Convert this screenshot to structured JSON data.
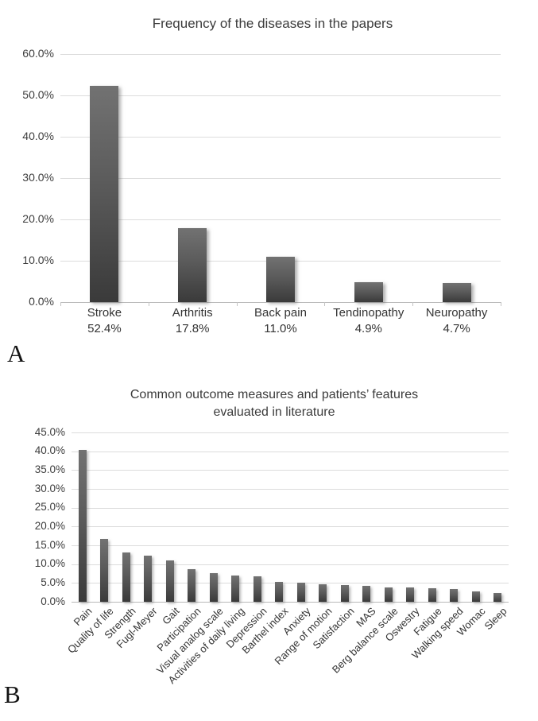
{
  "colors": {
    "background": "#ffffff",
    "bar_gradient_top": "#727272",
    "bar_gradient_bottom": "#3a3a3a",
    "gridline": "#dcdcdc",
    "axis_line": "#b9b9b9",
    "text": "#3d3d3d"
  },
  "chart_data": [
    {
      "type": "bar",
      "panel_label": "A",
      "title": "Frequency of the diseases in the papers",
      "categories": [
        "Stroke",
        "Arthritis",
        "Back pain",
        "Tendinopathy",
        "Neuropathy"
      ],
      "values": [
        52.4,
        17.8,
        11.0,
        4.9,
        4.7
      ],
      "bar_labels": [
        "52.4%",
        "17.8%",
        "11.0%",
        "4.9%",
        "4.7%"
      ],
      "ylim": [
        0,
        60
      ],
      "ytick_step": 10,
      "yticks": [
        "60.0%",
        "50.0%",
        "40.0%",
        "30.0%",
        "20.0%",
        "10.0%",
        "0.0%"
      ],
      "grid": true,
      "legend": false,
      "xlabel": "",
      "ylabel": ""
    },
    {
      "type": "bar",
      "panel_label": "B",
      "title": "Common outcome measures and patients’ features evaluated in literature",
      "title_lines": [
        "Common outcome measures and patients’ features",
        "evaluated in literature"
      ],
      "categories": [
        "Pain",
        "Quality of life",
        "Strength",
        "Fugl-Meyer",
        "Gait",
        "Participation",
        "Visual analog scale",
        "Activities of daily living",
        "Depression",
        "Barthel index",
        "Anxiety",
        "Range of motion",
        "Satisfaction",
        "MAS",
        "Berg balance scale",
        "Oswestry",
        "Fatigue",
        "Walking speed",
        "Womac",
        "Sleep"
      ],
      "values": [
        40.3,
        16.6,
        13.0,
        12.2,
        10.9,
        8.7,
        7.6,
        7.0,
        6.8,
        5.2,
        5.0,
        4.6,
        4.5,
        4.2,
        3.9,
        3.8,
        3.5,
        3.4,
        2.8,
        2.4
      ],
      "ylim": [
        0,
        45
      ],
      "ytick_step": 5,
      "yticks": [
        "45.0%",
        "40.0%",
        "35.0%",
        "30.0%",
        "25.0%",
        "20.0%",
        "15.0%",
        "10.0%",
        "5.0%",
        "0.0%"
      ],
      "grid": true,
      "legend": false,
      "xtick_rotation": 45,
      "xlabel": "",
      "ylabel": ""
    }
  ]
}
